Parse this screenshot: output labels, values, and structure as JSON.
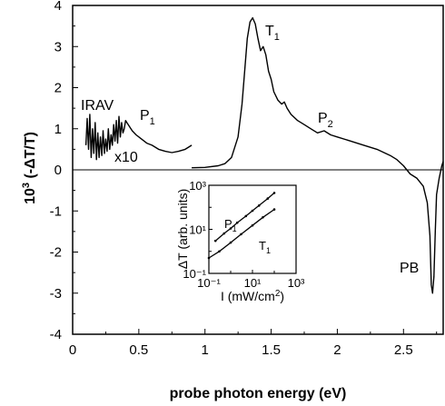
{
  "chart_data": [
    {
      "type": "line",
      "title": "",
      "xlabel": "probe photon energy (eV)",
      "ylabel": "10³ (-ΔT/T)",
      "xlim": [
        0,
        2.8
      ],
      "ylim": [
        -4,
        4
      ],
      "x_ticks": [
        "0",
        "0.5",
        "1",
        "1.5",
        "2",
        "2.5"
      ],
      "y_ticks": [
        "4",
        "3",
        "2",
        "1",
        "0",
        "-1",
        "-2",
        "-3",
        "-4"
      ],
      "grid": false,
      "zero_line": true,
      "annotations": [
        {
          "label": "IRAV",
          "x": 0.15,
          "y": 1.65
        },
        {
          "label": "x10",
          "x": 0.33,
          "y": 0.38
        },
        {
          "label": "P",
          "sub": "1",
          "x": 0.51,
          "y": 1.3
        },
        {
          "label": "T",
          "sub": "1",
          "x": 1.45,
          "y": 3.5
        },
        {
          "label": "P",
          "sub": "2",
          "x": 1.95,
          "y": 1.3
        },
        {
          "label": "PB",
          "x": 2.5,
          "y": -2.55
        }
      ],
      "series": [
        {
          "segment": "IR (x10)",
          "x": [
            0.1,
            0.11,
            0.12,
            0.13,
            0.14,
            0.15,
            0.16,
            0.17,
            0.18,
            0.19,
            0.2,
            0.21,
            0.22,
            0.23,
            0.24,
            0.25,
            0.26,
            0.27,
            0.28,
            0.29,
            0.3,
            0.31,
            0.32,
            0.33,
            0.34,
            0.35,
            0.36,
            0.37,
            0.38,
            0.39,
            0.4,
            0.42,
            0.45,
            0.48,
            0.52,
            0.56,
            0.6,
            0.65,
            0.7,
            0.75,
            0.8,
            0.85,
            0.9
          ],
          "y": [
            0.6,
            1.25,
            0.5,
            1.35,
            0.3,
            1.0,
            0.4,
            1.15,
            0.25,
            0.9,
            0.3,
            0.8,
            0.35,
            0.95,
            0.4,
            0.75,
            0.45,
            1.0,
            0.5,
            0.85,
            0.6,
            1.1,
            0.7,
            1.2,
            0.65,
            1.3,
            0.8,
            1.15,
            0.9,
            1.0,
            1.2,
            1.1,
            0.95,
            0.85,
            0.75,
            0.65,
            0.6,
            0.5,
            0.45,
            0.42,
            0.45,
            0.5,
            0.6
          ]
        },
        {
          "segment": "main",
          "x": [
            0.9,
            1.0,
            1.1,
            1.15,
            1.2,
            1.25,
            1.28,
            1.3,
            1.32,
            1.34,
            1.36,
            1.38,
            1.4,
            1.42,
            1.44,
            1.46,
            1.48,
            1.5,
            1.52,
            1.55,
            1.58,
            1.6,
            1.62,
            1.65,
            1.7,
            1.75,
            1.8,
            1.85,
            1.9,
            1.95,
            2.0,
            2.1,
            2.2,
            2.3,
            2.4,
            2.45,
            2.5,
            2.55,
            2.6,
            2.65,
            2.68,
            2.7,
            2.71,
            2.72,
            2.73,
            2.74,
            2.75,
            2.77,
            2.79,
            2.8
          ],
          "y": [
            0.05,
            0.06,
            0.1,
            0.15,
            0.3,
            0.8,
            1.6,
            2.4,
            3.2,
            3.6,
            3.7,
            3.55,
            3.2,
            2.9,
            3.0,
            2.8,
            2.4,
            2.2,
            1.9,
            1.7,
            1.6,
            1.65,
            1.5,
            1.35,
            1.2,
            1.1,
            1.0,
            0.9,
            0.95,
            0.85,
            0.8,
            0.7,
            0.6,
            0.5,
            0.35,
            0.25,
            0.1,
            -0.1,
            -0.2,
            -0.4,
            -0.8,
            -1.6,
            -2.8,
            -3.0,
            -2.6,
            -1.5,
            -0.6,
            -0.2,
            0.1,
            0.2
          ]
        }
      ]
    },
    {
      "type": "line",
      "title": "",
      "xlabel": "I (mW/cm²)",
      "ylabel": "ΔT (arb. units)",
      "x_scale": "log",
      "y_scale": "log",
      "xlim": [
        0.1,
        1000
      ],
      "ylim": [
        0.1,
        1000
      ],
      "x_ticks": [
        "10⁻¹",
        "10¹",
        "10³"
      ],
      "y_ticks": [
        "10³",
        "10¹",
        "10⁻¹"
      ],
      "series": [
        {
          "name": "P₁",
          "x": [
            0.2,
            0.5,
            1.0,
            2.0,
            5.0,
            10.0,
            20.0,
            50.0,
            100.0
          ],
          "y": [
            3.0,
            6.5,
            11.0,
            20.0,
            40.0,
            70.0,
            120.0,
            250.0,
            450.0
          ]
        },
        {
          "name": "T₁",
          "x": [
            0.1,
            0.3,
            1.0,
            3.0,
            10.0,
            30.0,
            100.0
          ],
          "y": [
            0.5,
            1.0,
            2.5,
            6.0,
            15.0,
            35.0,
            80.0
          ]
        }
      ]
    }
  ],
  "labels": {
    "irav": "IRAV",
    "x10": "x10",
    "p1_main": "P",
    "p1_sub": "1",
    "t1_main": "T",
    "t1_sub": "1",
    "p2_main": "P",
    "p2_sub": "2",
    "pb": "PB",
    "inset_p1": "P",
    "inset_p1_sub": "1",
    "inset_t1": "T",
    "inset_t1_sub": "1",
    "ylabel_main": "10",
    "ylabel_exp": "3",
    "ylabel_rest": " (-ΔT/T)",
    "xlabel_main": "probe photon energy (eV)",
    "inset_xlabel_main": "I (mW/cm",
    "inset_xlabel_exp": "2",
    "inset_xlabel_end": ")",
    "inset_ylabel": "ΔT (arb. units)"
  }
}
